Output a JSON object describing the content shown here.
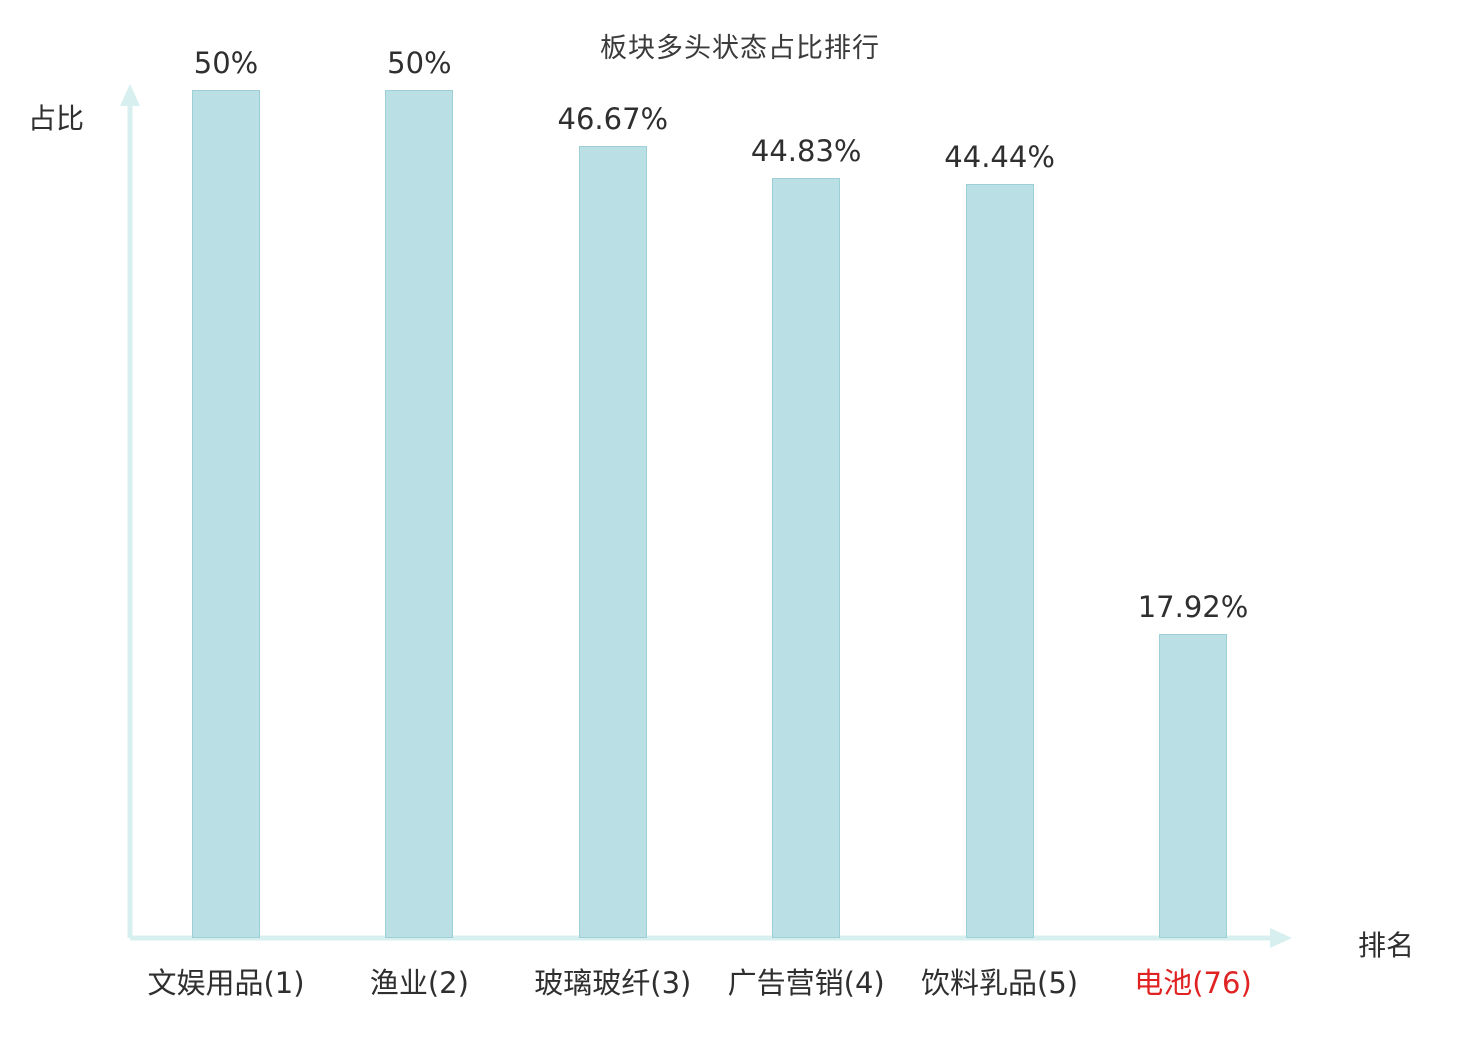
{
  "chart_data": {
    "type": "bar",
    "title": "板块多头状态占比排行",
    "xlabel": "排名",
    "ylabel": "占比",
    "ylim": [
      0,
      50
    ],
    "categories": [
      "文娱用品(1)",
      "渔业(2)",
      "玻璃玻纤(3)",
      "广告营销(4)",
      "饮料乳品(5)",
      "电池(76)"
    ],
    "values": [
      50,
      50,
      46.67,
      44.83,
      44.44,
      17.92
    ],
    "value_labels": [
      "50%",
      "50%",
      "46.67%",
      "44.83%",
      "44.44%",
      "17.92%"
    ],
    "highlight_index": 5,
    "grid": false,
    "legend": false,
    "colors": {
      "bar_fill": "#badfe4",
      "bar_border": "#9ccfd6",
      "axis": "#d8efef",
      "text": "#2f2f2f",
      "highlight_text": "#e02222"
    }
  }
}
